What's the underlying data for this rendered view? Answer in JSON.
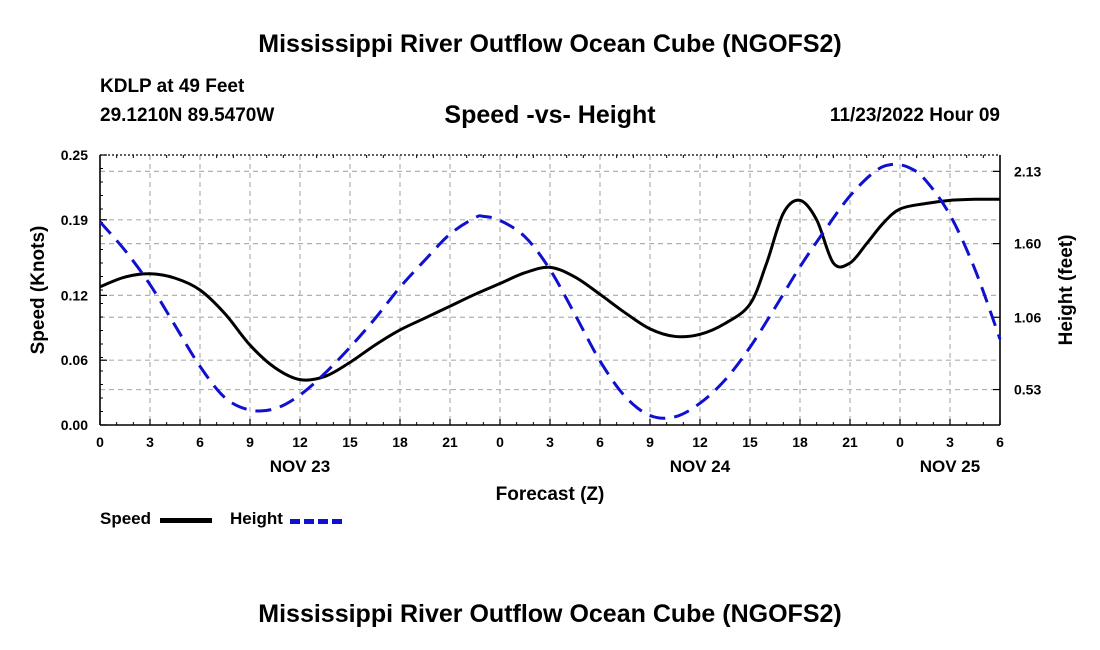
{
  "header": {
    "title": "Mississippi River Outflow Ocean Cube (NGOFS2)",
    "station": "KDLP at 49 Feet",
    "coords": "29.1210N  89.5470W",
    "subtitle": "Speed -vs- Height",
    "datetime": "11/23/2022 Hour 09"
  },
  "footer": {
    "title": "Mississippi River Outflow Ocean Cube (NGOFS2)"
  },
  "legend": {
    "speed_label": "Speed",
    "height_label": "Height"
  },
  "colors": {
    "speed": "#000000",
    "height": "#1010d0",
    "grid": "#b0b0b0"
  },
  "chart_data": {
    "type": "line",
    "title": "Speed -vs- Height",
    "xlabel": "Forecast (Z)",
    "ylabel": "Speed (Knots)",
    "y2label": "Height (feet)",
    "xlim": [
      0,
      54
    ],
    "ylim": [
      0,
      0.25
    ],
    "y2lim": [
      0.27,
      2.25
    ],
    "grid": true,
    "x_ticks": [
      0,
      3,
      6,
      9,
      12,
      15,
      18,
      21,
      24,
      27,
      30,
      33,
      36,
      39,
      42,
      45,
      48,
      51,
      54
    ],
    "x_tick_labels": [
      "0",
      "3",
      "6",
      "9",
      "12",
      "15",
      "18",
      "21",
      "0",
      "3",
      "6",
      "9",
      "12",
      "15",
      "18",
      "21",
      "0",
      "3",
      "6"
    ],
    "y_ticks": [
      0.0,
      0.06,
      0.12,
      0.19,
      0.25
    ],
    "y_tick_labels": [
      "0.00",
      "0.06",
      "0.12",
      "0.19",
      "0.25"
    ],
    "y2_ticks": [
      0.53,
      1.06,
      1.6,
      2.13
    ],
    "y2_tick_labels": [
      "0.53",
      "1.06",
      "1.60",
      "2.13"
    ],
    "day_labels": [
      {
        "x": 12,
        "label": "NOV 23"
      },
      {
        "x": 36,
        "label": "NOV 24"
      },
      {
        "x": 51,
        "label": "NOV 25"
      }
    ],
    "series": [
      {
        "name": "Speed",
        "axis": "left",
        "style": "solid",
        "x": [
          0,
          1.5,
          3,
          4.5,
          6,
          7.5,
          9,
          10.5,
          12,
          13.5,
          15,
          16.5,
          18,
          19.5,
          21,
          22.5,
          24,
          25.5,
          27,
          28.5,
          30,
          31.5,
          33,
          34.5,
          36,
          37.5,
          39,
          40,
          41,
          42,
          43,
          44,
          45,
          46,
          47,
          48,
          49.5,
          51,
          52.5,
          54
        ],
        "values": [
          0.128,
          0.137,
          0.14,
          0.136,
          0.125,
          0.103,
          0.074,
          0.053,
          0.042,
          0.045,
          0.058,
          0.074,
          0.088,
          0.099,
          0.11,
          0.121,
          0.131,
          0.141,
          0.146,
          0.137,
          0.121,
          0.104,
          0.089,
          0.082,
          0.084,
          0.094,
          0.112,
          0.15,
          0.196,
          0.208,
          0.19,
          0.15,
          0.15,
          0.168,
          0.187,
          0.2,
          0.205,
          0.208,
          0.209,
          0.209
        ]
      },
      {
        "name": "Height",
        "axis": "right",
        "style": "dashed",
        "x": [
          0,
          1.5,
          3,
          4.5,
          6,
          7.5,
          9,
          10.5,
          12,
          13.5,
          15,
          16.5,
          18,
          19.5,
          21,
          22.5,
          23,
          24,
          25.5,
          27,
          28.5,
          30,
          31.5,
          33,
          34.5,
          36,
          37.5,
          39,
          40.5,
          42,
          43.5,
          45,
          46.5,
          47.5,
          48.5,
          49.5,
          51,
          52.5,
          54
        ],
        "values": [
          1.76,
          1.55,
          1.3,
          1.0,
          0.7,
          0.47,
          0.38,
          0.39,
          0.49,
          0.65,
          0.84,
          1.05,
          1.28,
          1.48,
          1.67,
          1.79,
          1.8,
          1.77,
          1.65,
          1.41,
          1.08,
          0.74,
          0.48,
          0.34,
          0.33,
          0.43,
          0.6,
          0.84,
          1.13,
          1.43,
          1.7,
          1.95,
          2.13,
          2.18,
          2.16,
          2.07,
          1.81,
          1.41,
          0.9
        ]
      }
    ]
  }
}
